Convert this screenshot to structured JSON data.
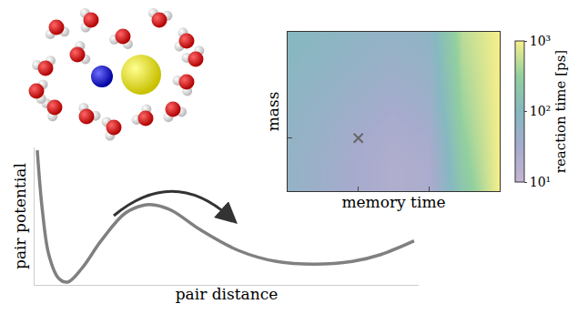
{
  "chart_data": [
    {
      "type": "line",
      "x_label": "pair distance",
      "y_label": "pair potential",
      "x": [
        0.07,
        0.2,
        0.37,
        0.62,
        0.86,
        1.23,
        1.73,
        2.35,
        2.84,
        3.16,
        3.58,
        4.32,
        5.31,
        6.3,
        7.28,
        8.27,
        9.01,
        9.88
      ],
      "values": [
        11.3,
        7.0,
        3.7,
        2.0,
        1.7,
        2.7,
        4.7,
        6.7,
        7.3,
        7.3,
        6.9,
        5.5,
        4.0,
        3.2,
        3.0,
        3.2,
        3.7,
        4.7
      ],
      "xlim": [
        0,
        10
      ],
      "ylim": [
        1.5,
        11.5
      ],
      "xticks": [],
      "yticks": [],
      "tick_labels": false,
      "color": "#808080"
    },
    {
      "type": "heatmap",
      "x_label": "memory time",
      "y_label": "mass",
      "log": true,
      "x": [
        0.01,
        0.03,
        0.1,
        0.3,
        1,
        3,
        10
      ],
      "y": [
        0.1,
        0.3,
        1,
        3,
        10,
        30,
        100
      ],
      "cells": [
        [
          60,
          45,
          30,
          22,
          25,
          200,
          1000
        ],
        [
          60,
          45,
          30,
          22,
          25,
          250,
          1000
        ],
        [
          65,
          50,
          32,
          25,
          30,
          300,
          1000
        ],
        [
          70,
          55,
          40,
          30,
          40,
          350,
          1000
        ],
        [
          80,
          65,
          50,
          40,
          50,
          400,
          1000
        ],
        [
          90,
          75,
          60,
          50,
          60,
          450,
          1000
        ],
        [
          100,
          85,
          70,
          60,
          70,
          500,
          1000
        ]
      ],
      "xlim": [
        0.01,
        10
      ],
      "ylim": [
        0.1,
        100
      ],
      "xticks": [
        0.1,
        1
      ],
      "yticks": [
        1
      ],
      "grid": true,
      "tick_labels": false,
      "colorbar_title": "reaction time [ps]",
      "colorbar_range": [
        10,
        1000
      ],
      "colorbar_ticks": [
        {
          "value": 10,
          "label": "10¹"
        },
        {
          "value": 100,
          "label": "10²"
        },
        {
          "value": 1000,
          "label": "10³"
        }
      ],
      "marked_point": {
        "x": 0.1,
        "y": 1
      },
      "marker": "x"
    }
  ]
}
